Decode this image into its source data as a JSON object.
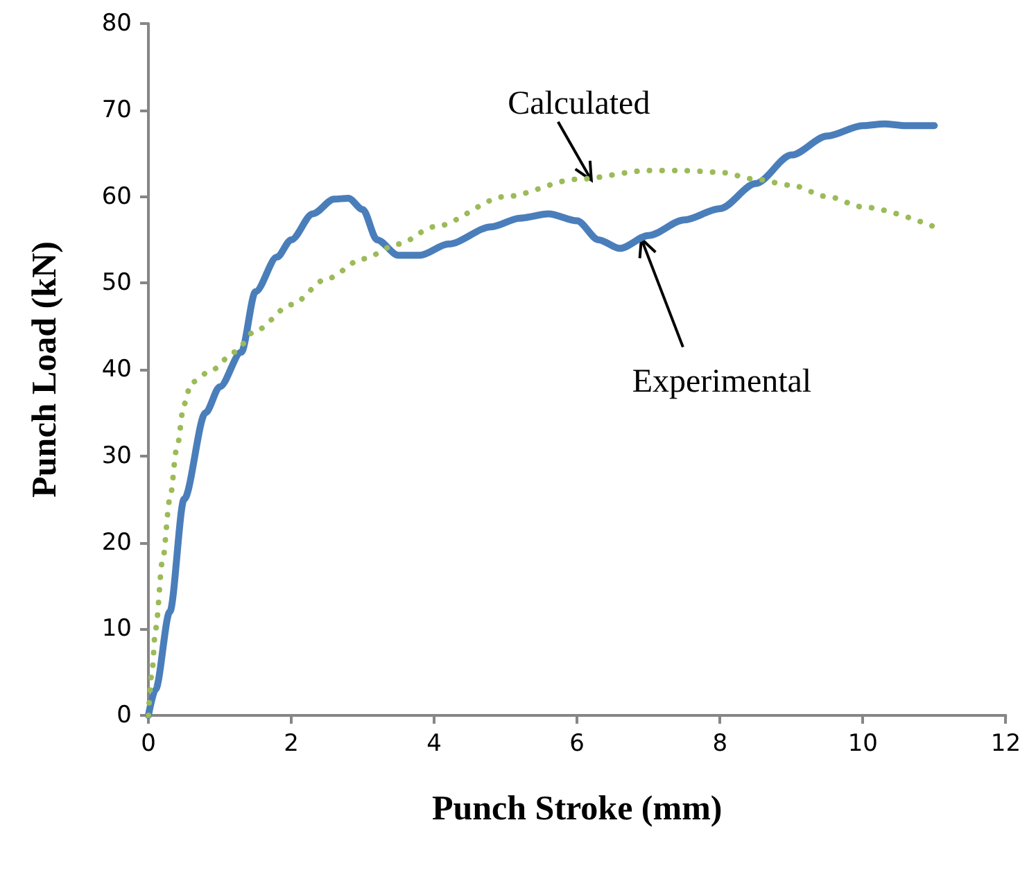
{
  "chart_data": {
    "type": "line",
    "xlabel": "Punch Stroke (mm)",
    "ylabel": "Punch Load (kN)",
    "xlim": [
      0,
      12
    ],
    "xticks": [
      0,
      2,
      4,
      6,
      8,
      10,
      12
    ],
    "ylim": [
      0,
      80
    ],
    "yticks": [
      0,
      10,
      20,
      30,
      40,
      50,
      60,
      70,
      80
    ],
    "grid": false,
    "marker": "none",
    "series": [
      {
        "color": "#4a7ebb",
        "line_style": "solid",
        "x": [
          0,
          0.1,
          0.3,
          0.5,
          0.8,
          1.0,
          1.3,
          1.5,
          1.8,
          2.0,
          2.3,
          2.6,
          2.8,
          3.0,
          3.2,
          3.5,
          3.8,
          4.2,
          4.8,
          5.2,
          5.6,
          6.0,
          6.3,
          6.6,
          7.0,
          7.5,
          8.0,
          8.5,
          9.0,
          9.5,
          10.0,
          10.3,
          10.6,
          11.0
        ],
        "values": [
          0,
          3,
          12,
          25,
          35,
          38,
          42,
          49,
          53,
          55,
          58,
          59.7,
          59.8,
          58.5,
          55,
          53.2,
          53.2,
          54.5,
          56.5,
          57.5,
          58,
          57.2,
          55,
          54,
          55.5,
          57.3,
          58.6,
          61.5,
          64.8,
          67,
          68.2,
          68.4,
          68.2,
          68.2
        ]
      },
      {
        "color": "#9bbb59",
        "line_style": "dotted",
        "x": [
          0,
          0.05,
          0.1,
          0.2,
          0.3,
          0.4,
          0.5,
          0.6,
          0.9,
          1.2,
          1.5,
          2.0,
          2.5,
          3.0,
          3.5,
          4.0,
          5.0,
          6.0,
          7.0,
          7.5,
          8.0,
          8.5,
          9.0,
          9.5,
          10.0,
          11.0
        ],
        "values": [
          0,
          5,
          10,
          18,
          25,
          31,
          36,
          38.5,
          40,
          42,
          44.5,
          47.5,
          50.5,
          52.8,
          54.5,
          56.5,
          60,
          62,
          63,
          63,
          62.8,
          62,
          61.3,
          60,
          58.8,
          56.5
        ]
      }
    ],
    "annotations": [
      {
        "text": "Calculated",
        "x": 6.2,
        "y": 61.9
      },
      {
        "text": "Experimental",
        "x": 6.9,
        "y": 55.1
      }
    ]
  }
}
